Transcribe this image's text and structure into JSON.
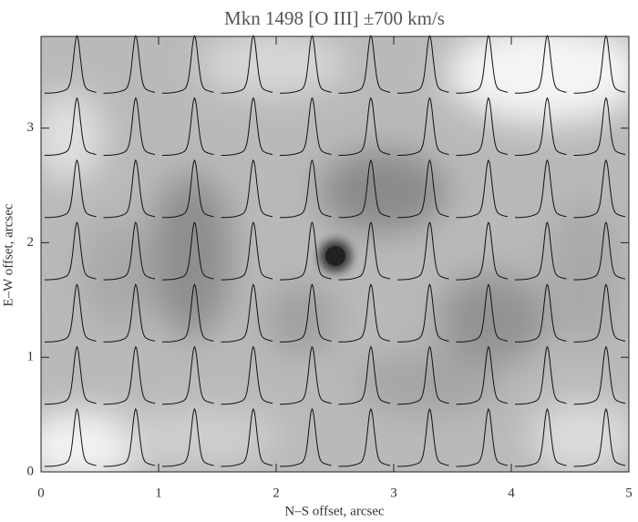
{
  "chart_data": {
    "type": "image",
    "title": "Mkn 1498 [O III] ±700 km/s",
    "x_label": "N–S offset, arcsec",
    "y_label": "E–W offset, arcsec",
    "xlim": [
      0,
      5
    ],
    "ylim": [
      0,
      3.8
    ],
    "xticks": [
      0,
      1,
      2,
      3,
      4,
      5
    ],
    "yticks": [
      0,
      1,
      2,
      3
    ]
  }
}
